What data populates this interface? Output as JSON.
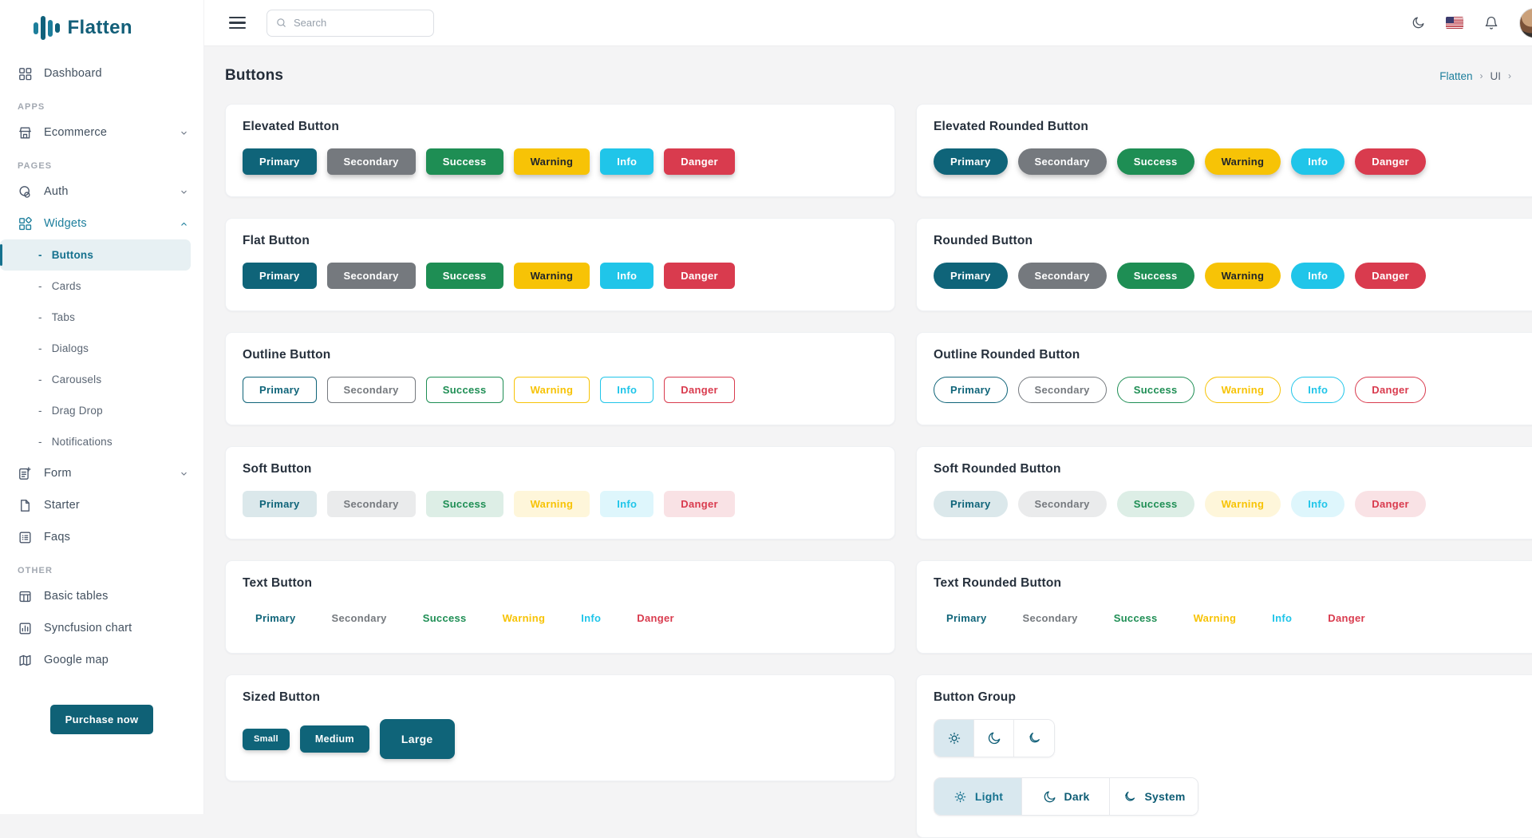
{
  "brand": {
    "name": "Flatten"
  },
  "topbar": {
    "search_placeholder": "Search",
    "icons": [
      "menu-icon",
      "search-icon",
      "moon-icon",
      "us-flag-icon",
      "bell-icon",
      "user-avatar"
    ]
  },
  "sidebar": {
    "purchase_label": "Purchase now",
    "groups": [
      {
        "heading": null,
        "items": [
          {
            "label": "Dashboard",
            "icon": "dashboard-grid"
          }
        ]
      },
      {
        "heading": "APPS",
        "items": [
          {
            "label": "Ecommerce",
            "icon": "storefront",
            "chevron": "down"
          }
        ]
      },
      {
        "heading": "PAGES",
        "items": [
          {
            "label": "Auth",
            "icon": "auth",
            "chevron": "down"
          },
          {
            "label": "Widgets",
            "icon": "widgets",
            "chevron": "up",
            "active": true,
            "children": [
              {
                "label": "Buttons",
                "active": true
              },
              {
                "label": "Cards"
              },
              {
                "label": "Tabs"
              },
              {
                "label": "Dialogs"
              },
              {
                "label": "Carousels"
              },
              {
                "label": "Drag Drop"
              },
              {
                "label": "Notifications"
              }
            ]
          },
          {
            "label": "Form",
            "icon": "form",
            "chevron": "down"
          },
          {
            "label": "Starter",
            "icon": "file"
          },
          {
            "label": "Faqs",
            "icon": "faq-list"
          }
        ]
      },
      {
        "heading": "OTHER",
        "items": [
          {
            "label": "Basic tables",
            "icon": "table"
          },
          {
            "label": "Syncfusion chart",
            "icon": "chart"
          },
          {
            "label": "Google map",
            "icon": "map"
          }
        ]
      }
    ]
  },
  "page": {
    "title": "Buttons",
    "breadcrumb": [
      {
        "label": "Flatten",
        "link": true
      },
      {
        "label": "UI",
        "link": false
      }
    ],
    "breadcrumb_trailing_separator": true
  },
  "palette": [
    {
      "key": "primary",
      "label": "Primary",
      "color": "#0f6479",
      "text_on_solid": "#ffffff"
    },
    {
      "key": "secondary",
      "label": "Secondary",
      "color": "#75797e",
      "text_on_solid": "#ffffff"
    },
    {
      "key": "success",
      "label": "Success",
      "color": "#1e8e54",
      "text_on_solid": "#ffffff"
    },
    {
      "key": "warning",
      "label": "Warning",
      "color": "#f7c306",
      "text_on_solid": "#212529"
    },
    {
      "key": "info",
      "label": "Info",
      "color": "#20c5e9",
      "text_on_solid": "#ffffff"
    },
    {
      "key": "danger",
      "label": "Danger",
      "color": "#d93b4e",
      "text_on_solid": "#ffffff"
    }
  ],
  "cards": {
    "left": [
      {
        "title": "Elevated Button",
        "variant": "elevated",
        "shape": "normal",
        "type": "colors"
      },
      {
        "title": "Flat Button",
        "variant": "flat",
        "shape": "normal",
        "type": "colors"
      },
      {
        "title": "Outline Button",
        "variant": "outline",
        "shape": "normal",
        "type": "colors"
      },
      {
        "title": "Soft Button",
        "variant": "soft",
        "shape": "normal",
        "type": "colors"
      },
      {
        "title": "Text Button",
        "variant": "text",
        "shape": "normal",
        "type": "colors"
      },
      {
        "title": "Sized Button",
        "variant": "sized",
        "shape": "normal",
        "type": "sizes"
      }
    ],
    "right": [
      {
        "title": "Elevated Rounded Button",
        "variant": "elevated",
        "shape": "pill",
        "type": "colors"
      },
      {
        "title": "Rounded Button",
        "variant": "flat",
        "shape": "pill",
        "type": "colors"
      },
      {
        "title": "Outline Rounded Button",
        "variant": "outline",
        "shape": "pill",
        "type": "colors"
      },
      {
        "title": "Soft Rounded Button",
        "variant": "soft",
        "shape": "pill",
        "type": "colors"
      },
      {
        "title": "Text Rounded Button",
        "variant": "text",
        "shape": "pill",
        "type": "colors"
      },
      {
        "title": "Button Group",
        "variant": "group",
        "shape": "normal",
        "type": "group"
      }
    ]
  },
  "sizes": [
    {
      "key": "sm",
      "label": "Small"
    },
    {
      "key": "md",
      "label": "Medium"
    },
    {
      "key": "lg",
      "label": "Large"
    }
  ],
  "button_group": {
    "icon_modes": [
      {
        "name": "light",
        "icon": "sun",
        "active": true
      },
      {
        "name": "dark",
        "icon": "moon",
        "active": false
      },
      {
        "name": "system",
        "icon": "moon-star",
        "active": false
      }
    ],
    "labeled_modes": [
      {
        "label": "Light",
        "icon": "sun",
        "active": true
      },
      {
        "label": "Dark",
        "icon": "moon",
        "active": false
      },
      {
        "label": "System",
        "icon": "moon-star",
        "active": false
      }
    ]
  },
  "colors": {
    "accent": "#1c7e9c",
    "sidebar_active": "#15718e",
    "purchase_button": "#0f6176",
    "content_background": "#f4f4f5",
    "active_segment_background": "#d9e8ef",
    "soft_tint_alpha": 0.15
  }
}
